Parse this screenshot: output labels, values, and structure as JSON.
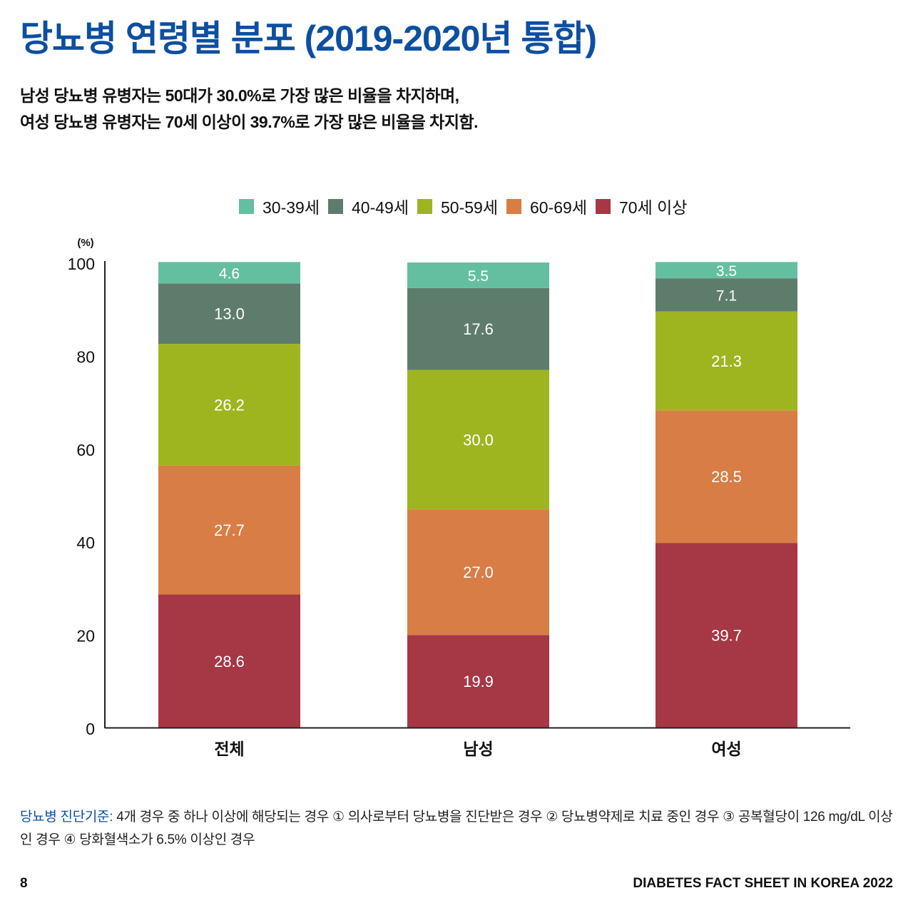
{
  "page": {
    "title": "당뇨병 연령별 분포 (2019-2020년 통합)",
    "subtitle_lines": [
      "남성 당뇨병 유병자는 50대가 30.0%로 가장 많은 비율을 차지하며,",
      "여성 당뇨병 유병자는 70세 이상이 39.7%로 가장 많은 비율을 차지함."
    ],
    "footnote": {
      "label": "당뇨병 진단기준:",
      "text": " 4개 경우 중 하나 이상에 해당되는 경우 ① 의사로부터 당뇨병을 진단받은 경우 ② 당뇨병약제로 치료 중인 경우 ③ 공복혈당이 126 mg/dL 이상인 경우 ④ 당화혈색소가 6.5% 이상인 경우"
    },
    "page_number": "8",
    "footer_title": "DIABETES FACT SHEET IN KOREA 2022"
  },
  "colors": {
    "title": "#0d4fa0",
    "series": [
      "#64bfa0",
      "#5e7c6c",
      "#9fb520",
      "#d87d45",
      "#a63745"
    ]
  },
  "chart_data": {
    "type": "bar",
    "stacked": true,
    "title": "당뇨병 연령별 분포 (2019-2020년 통합)",
    "xlabel": "",
    "ylabel": "(%)",
    "ylim": [
      0,
      100
    ],
    "yticks": [
      0,
      20,
      40,
      60,
      80,
      100
    ],
    "grid": false,
    "legend_position": "top-center",
    "categories": [
      "전체",
      "남성",
      "여성"
    ],
    "series": [
      {
        "name": "70세 이상",
        "values": [
          28.6,
          19.9,
          39.7
        ]
      },
      {
        "name": "60-69세",
        "values": [
          27.7,
          27.0,
          28.5
        ]
      },
      {
        "name": "50-59세",
        "values": [
          26.2,
          30.0,
          21.3
        ]
      },
      {
        "name": "40-49세",
        "values": [
          13.0,
          17.6,
          7.1
        ]
      },
      {
        "name": "30-39세",
        "values": [
          4.6,
          5.5,
          3.5
        ]
      }
    ],
    "legend_order": [
      "30-39세",
      "40-49세",
      "50-59세",
      "60-69세",
      "70세 이상"
    ]
  }
}
